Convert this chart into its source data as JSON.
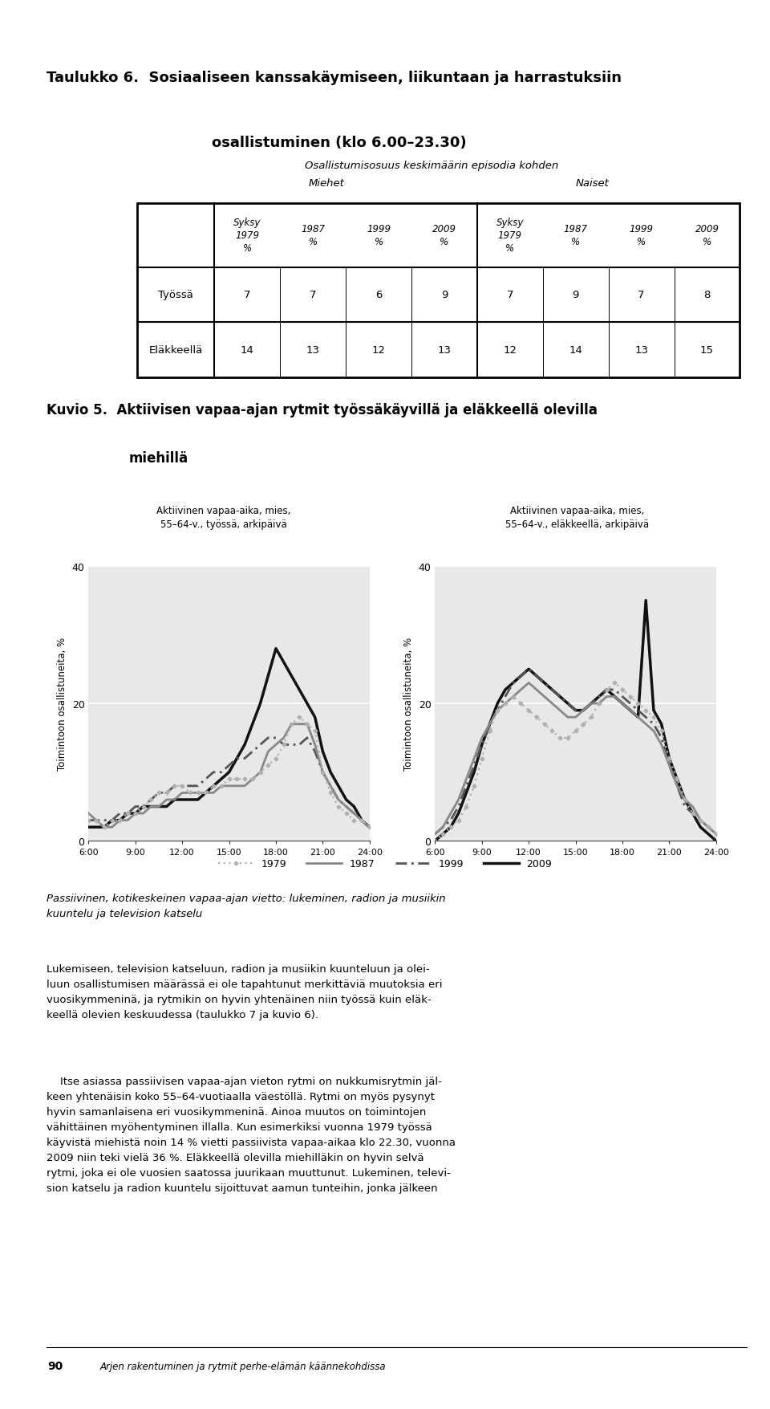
{
  "title1": "Taulukko 6.  Sosiaaliseen kanssakäymiseen, liikuntaan ja harrastuksiin",
  "title2": "osallistuminen (klo 6.00–23.30)",
  "subtitle": "Osallistumisosuus keskimäärin episodia kohden",
  "col_group1": "Miehet",
  "col_group2": "Naiset",
  "col_headers": [
    "Syksy\n1979\n%",
    "1987\n%",
    "1999\n%",
    "2009\n%",
    "Syksy\n1979\n%",
    "1987\n%",
    "1999\n%",
    "2009\n%"
  ],
  "row_labels": [
    "Työssä",
    "Eläkkeellä"
  ],
  "table_data": [
    [
      7,
      7,
      6,
      9,
      7,
      9,
      7,
      8
    ],
    [
      14,
      13,
      12,
      13,
      12,
      14,
      13,
      15
    ]
  ],
  "chart1_title": "Aktiivinen vapaa-aika, mies,\n55–64-v., työssä, arkipäivä",
  "chart2_title": "Aktiivinen vapaa-aika, mies,\n55–64-v., eläkkeellä, arkipäivä",
  "ylabel": "Toimintoon osallistuneita, %",
  "xlabels": [
    "6:00",
    "9:00",
    "12:00",
    "15:00",
    "18:00",
    "21:00",
    "24:00"
  ],
  "ylim": [
    0,
    40
  ],
  "yticks": [
    0,
    20,
    40
  ],
  "legend_labels": [
    "1979",
    "1987",
    "1999",
    "2009"
  ],
  "bg_color": "#e8e8e8",
  "time_points": [
    6,
    6.5,
    7,
    7.5,
    8,
    8.5,
    9,
    9.5,
    10,
    10.5,
    11,
    11.5,
    12,
    12.5,
    13,
    13.5,
    14,
    14.5,
    15,
    15.5,
    16,
    16.5,
    17,
    17.5,
    18,
    18.5,
    19,
    19.5,
    20,
    20.5,
    21,
    21.5,
    22,
    22.5,
    23,
    23.5,
    24
  ],
  "chart1_1979": [
    3,
    3,
    2,
    3,
    3,
    4,
    4,
    5,
    6,
    7,
    7,
    8,
    8,
    7,
    7,
    7,
    8,
    8,
    9,
    9,
    9,
    9,
    10,
    11,
    12,
    14,
    17,
    18,
    17,
    16,
    10,
    7,
    5,
    4,
    3,
    3,
    2
  ],
  "chart1_1987": [
    4,
    3,
    2,
    2,
    3,
    3,
    4,
    4,
    5,
    5,
    6,
    6,
    7,
    7,
    7,
    7,
    7,
    8,
    8,
    8,
    8,
    9,
    10,
    13,
    14,
    15,
    17,
    17,
    17,
    14,
    10,
    8,
    6,
    5,
    4,
    3,
    2
  ],
  "chart1_1999": [
    3,
    3,
    3,
    3,
    4,
    4,
    5,
    5,
    6,
    7,
    7,
    8,
    8,
    8,
    8,
    9,
    10,
    10,
    11,
    12,
    12,
    13,
    14,
    15,
    15,
    14,
    14,
    14,
    15,
    13,
    10,
    8,
    6,
    5,
    4,
    3,
    2
  ],
  "chart1_2009": [
    2,
    2,
    2,
    3,
    3,
    4,
    4,
    5,
    5,
    5,
    5,
    6,
    6,
    6,
    6,
    7,
    8,
    9,
    10,
    12,
    14,
    17,
    20,
    24,
    28,
    26,
    24,
    22,
    20,
    18,
    13,
    10,
    8,
    6,
    5,
    3,
    2
  ],
  "chart2_1979": [
    0,
    1,
    2,
    3,
    5,
    8,
    12,
    16,
    19,
    20,
    21,
    20,
    19,
    18,
    17,
    16,
    15,
    15,
    16,
    17,
    18,
    20,
    22,
    23,
    22,
    21,
    20,
    19,
    18,
    16,
    12,
    9,
    6,
    4,
    3,
    2,
    1
  ],
  "chart2_1987": [
    1,
    2,
    4,
    6,
    9,
    12,
    15,
    17,
    19,
    20,
    21,
    22,
    23,
    22,
    21,
    20,
    19,
    18,
    18,
    19,
    20,
    20,
    21,
    21,
    20,
    19,
    18,
    17,
    16,
    14,
    11,
    8,
    6,
    5,
    3,
    2,
    1
  ],
  "chart2_1999": [
    1,
    2,
    3,
    5,
    8,
    11,
    14,
    17,
    19,
    21,
    23,
    24,
    25,
    24,
    23,
    22,
    21,
    20,
    19,
    19,
    20,
    21,
    22,
    22,
    21,
    20,
    19,
    18,
    17,
    15,
    11,
    8,
    5,
    4,
    3,
    2,
    1
  ],
  "chart2_2009": [
    0,
    1,
    2,
    4,
    7,
    10,
    14,
    17,
    20,
    22,
    23,
    24,
    25,
    24,
    23,
    22,
    21,
    20,
    19,
    19,
    20,
    21,
    22,
    21,
    20,
    19,
    18,
    35,
    19,
    17,
    12,
    9,
    6,
    4,
    2,
    1,
    0
  ],
  "body_text1": "Passiivinen, kotikeskeinen vapaa-ajan vietto: lukeminen, radion ja musiikin\nkuuntelu ja television katselu",
  "body_text2": "Lukemiseen, television katseluun, radion ja musiikin kuunteluun ja olei-\nluun osallistumisen määrässä ei ole tapahtunut merkittäviä muutoksia eri\nvuosikymmeninä, ja rytmikin on hyvin yhtenäinen niin työssä kuin eläk-\nkeellä olevien keskuudessa (taulukko 7 ja kuvio 6).",
  "body_text3": "    Itse asiassa passiivisen vapaa-ajan vieton rytmi on nukkumisrytmin jäl-\nkeen yhtenäisin koko 55–64-vuotiaalla väestöllä. Rytmi on myös pysynyt\nhyvin samanlaisena eri vuosikymmeninä. Ainoa muutos on toimintojen\nvähittäinen myöhentyminen illalla. Kun esimerkiksi vuonna 1979 työssä\nkäyvistä miehistä noin 14 % vietti passiivista vapaa-aikaa klo 22.30, vuonna\n2009 niin teki vielä 36 %. Eläkkeellä olevilla miehilläkin on hyvin selvä\nrytmi, joka ei ole vuosien saatossa juurikaan muuttunut. Lukeminen, televi-\nsion katselu ja radion kuuntelu sijoittuvat aamun tunteihin, jonka jälkeen",
  "footer_text": "Arjen rakentuminen ja rytmit perhe-elämän käännekohdissa",
  "page_number": "90"
}
